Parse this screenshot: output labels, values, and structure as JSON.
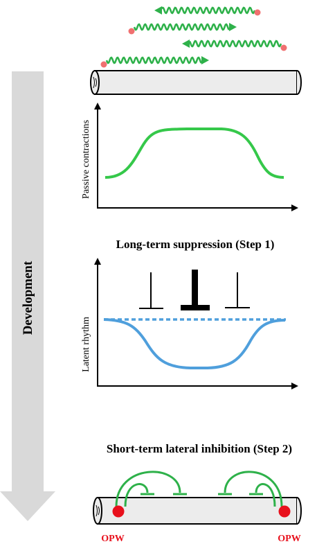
{
  "development_label": "Development",
  "panel1": {
    "ylabel": "Passive contractions"
  },
  "panel2": {
    "title": "Long-term suppression (Step 1)",
    "ylabel": "Latent rhythm"
  },
  "panel3": {
    "title": "Short-term lateral inhibition (Step 2)",
    "left_label": "OPW",
    "right_label": "OPW"
  },
  "colors": {
    "wave_green": "#2eb14a",
    "curve_green": "#35c84a",
    "rhythm_blue": "#4f9fdc",
    "opw_red": "#e8101c",
    "dot_pink": "#f07070",
    "arrow_gray": "#d9d9d9",
    "tube_fill": "#ececec"
  }
}
